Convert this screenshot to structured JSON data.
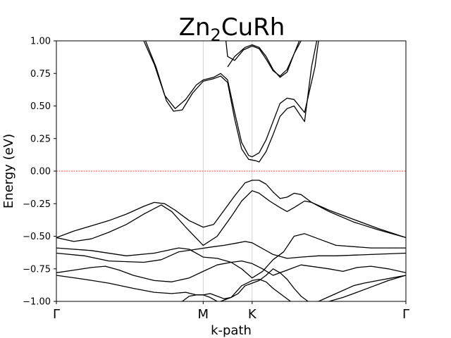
{
  "chart_data": {
    "type": "line",
    "title_main": "Zn",
    "title_sub": "2",
    "title_rest": "CuRh",
    "xlabel": "k-path",
    "ylabel": "Energy (eV)",
    "xlim": [
      0,
      1
    ],
    "ylim": [
      -1.0,
      1.0
    ],
    "yticks": [
      -1.0,
      -0.75,
      -0.5,
      -0.25,
      0.0,
      0.25,
      0.5,
      0.75,
      1.0
    ],
    "ytick_labels": [
      "−1.00",
      "−0.75",
      "−0.50",
      "−0.25",
      "0.00",
      "0.25",
      "0.50",
      "0.75",
      "1.00"
    ],
    "kpoints": [
      {
        "label": "Γ",
        "x": 0.0
      },
      {
        "label": "M",
        "x": 0.42
      },
      {
        "label": "K",
        "x": 0.56
      },
      {
        "label": "Γ",
        "x": 1.0
      }
    ],
    "fermi_level": 0.0,
    "colors": {
      "band": "#000000",
      "fermi": "#ff0000",
      "vline": "#c8c8c8"
    },
    "series": [
      {
        "points": [
          [
            0.25,
            1.0
          ],
          [
            0.28,
            0.82
          ],
          [
            0.31,
            0.58
          ],
          [
            0.34,
            0.48
          ],
          [
            0.37,
            0.55
          ],
          [
            0.4,
            0.66
          ],
          [
            0.42,
            0.7
          ],
          [
            0.45,
            0.72
          ],
          [
            0.47,
            0.75
          ],
          [
            0.49,
            0.7
          ],
          [
            0.51,
            0.45
          ],
          [
            0.53,
            0.22
          ],
          [
            0.55,
            0.12
          ],
          [
            0.56,
            0.11
          ],
          [
            0.58,
            0.14
          ],
          [
            0.6,
            0.24
          ],
          [
            0.62,
            0.38
          ],
          [
            0.64,
            0.52
          ],
          [
            0.66,
            0.56
          ],
          [
            0.68,
            0.55
          ],
          [
            0.71,
            0.45
          ],
          [
            0.74,
            0.8
          ],
          [
            0.75,
            1.0
          ]
        ]
      },
      {
        "points": [
          [
            0.255,
            1.0
          ],
          [
            0.285,
            0.8
          ],
          [
            0.315,
            0.54
          ],
          [
            0.335,
            0.46
          ],
          [
            0.36,
            0.47
          ],
          [
            0.39,
            0.6
          ],
          [
            0.42,
            0.69
          ],
          [
            0.45,
            0.71
          ],
          [
            0.47,
            0.73
          ],
          [
            0.49,
            0.68
          ],
          [
            0.51,
            0.4
          ],
          [
            0.53,
            0.17
          ],
          [
            0.55,
            0.09
          ],
          [
            0.57,
            0.08
          ],
          [
            0.58,
            0.07
          ],
          [
            0.6,
            0.15
          ],
          [
            0.62,
            0.28
          ],
          [
            0.64,
            0.42
          ],
          [
            0.66,
            0.48
          ],
          [
            0.68,
            0.5
          ],
          [
            0.71,
            0.38
          ],
          [
            0.73,
            0.8
          ],
          [
            0.745,
            1.0
          ]
        ]
      },
      {
        "points": [
          [
            0.485,
            1.0
          ],
          [
            0.49,
            0.88
          ],
          [
            0.51,
            0.85
          ],
          [
            0.535,
            0.93
          ],
          [
            0.56,
            0.96
          ],
          [
            0.58,
            0.94
          ],
          [
            0.6,
            0.86
          ],
          [
            0.62,
            0.77
          ],
          [
            0.64,
            0.73
          ],
          [
            0.66,
            0.78
          ],
          [
            0.68,
            0.9
          ],
          [
            0.695,
            1.0
          ]
        ]
      },
      {
        "points": [
          [
            0.49,
            0.8
          ],
          [
            0.51,
            0.88
          ],
          [
            0.54,
            0.95
          ],
          [
            0.56,
            0.97
          ],
          [
            0.58,
            0.95
          ],
          [
            0.6,
            0.88
          ],
          [
            0.62,
            0.78
          ],
          [
            0.64,
            0.72
          ],
          [
            0.66,
            0.76
          ],
          [
            0.68,
            0.9
          ],
          [
            0.7,
            1.0
          ]
        ]
      },
      {
        "points": [
          [
            0.0,
            -0.51
          ],
          [
            0.05,
            -0.46
          ],
          [
            0.1,
            -0.42
          ],
          [
            0.15,
            -0.38
          ],
          [
            0.2,
            -0.33
          ],
          [
            0.25,
            -0.27
          ],
          [
            0.28,
            -0.24
          ],
          [
            0.31,
            -0.25
          ],
          [
            0.34,
            -0.3
          ],
          [
            0.38,
            -0.38
          ],
          [
            0.42,
            -0.43
          ],
          [
            0.45,
            -0.41
          ],
          [
            0.48,
            -0.3
          ],
          [
            0.51,
            -0.19
          ],
          [
            0.54,
            -0.09
          ],
          [
            0.56,
            -0.07
          ],
          [
            0.58,
            -0.07
          ],
          [
            0.6,
            -0.1
          ],
          [
            0.62,
            -0.16
          ],
          [
            0.64,
            -0.21
          ],
          [
            0.66,
            -0.2
          ],
          [
            0.68,
            -0.17
          ],
          [
            0.7,
            -0.18
          ],
          [
            0.73,
            -0.24
          ],
          [
            0.78,
            -0.3
          ],
          [
            0.85,
            -0.37
          ],
          [
            0.92,
            -0.44
          ],
          [
            1.0,
            -0.51
          ]
        ]
      },
      {
        "points": [
          [
            0.0,
            -0.51
          ],
          [
            0.05,
            -0.54
          ],
          [
            0.1,
            -0.52
          ],
          [
            0.15,
            -0.47
          ],
          [
            0.2,
            -0.41
          ],
          [
            0.25,
            -0.33
          ],
          [
            0.3,
            -0.26
          ],
          [
            0.33,
            -0.31
          ],
          [
            0.37,
            -0.43
          ],
          [
            0.42,
            -0.57
          ],
          [
            0.46,
            -0.5
          ],
          [
            0.5,
            -0.35
          ],
          [
            0.53,
            -0.23
          ],
          [
            0.56,
            -0.15
          ],
          [
            0.58,
            -0.17
          ],
          [
            0.61,
            -0.23
          ],
          [
            0.64,
            -0.28
          ],
          [
            0.66,
            -0.31
          ],
          [
            0.68,
            -0.28
          ],
          [
            0.71,
            -0.23
          ],
          [
            0.73,
            -0.24
          ],
          [
            0.78,
            -0.31
          ],
          [
            0.85,
            -0.39
          ],
          [
            0.92,
            -0.45
          ],
          [
            1.0,
            -0.51
          ]
        ]
      },
      {
        "points": [
          [
            0.0,
            -0.59
          ],
          [
            0.1,
            -0.61
          ],
          [
            0.2,
            -0.65
          ],
          [
            0.28,
            -0.63
          ],
          [
            0.35,
            -0.59
          ],
          [
            0.38,
            -0.6
          ],
          [
            0.42,
            -0.66
          ],
          [
            0.46,
            -0.67
          ],
          [
            0.5,
            -0.7
          ],
          [
            0.53,
            -0.75
          ],
          [
            0.56,
            -0.82
          ],
          [
            0.59,
            -0.77
          ],
          [
            0.62,
            -0.68
          ],
          [
            0.65,
            -0.62
          ],
          [
            0.68,
            -0.5
          ],
          [
            0.71,
            -0.48
          ],
          [
            0.75,
            -0.52
          ],
          [
            0.8,
            -0.57
          ],
          [
            0.9,
            -0.59
          ],
          [
            1.0,
            -0.59
          ]
        ]
      },
      {
        "points": [
          [
            0.0,
            -0.63
          ],
          [
            0.08,
            -0.65
          ],
          [
            0.15,
            -0.69
          ],
          [
            0.25,
            -0.7
          ],
          [
            0.3,
            -0.68
          ],
          [
            0.35,
            -0.62
          ],
          [
            0.4,
            -0.6
          ],
          [
            0.45,
            -0.58
          ],
          [
            0.48,
            -0.57
          ],
          [
            0.52,
            -0.55
          ],
          [
            0.54,
            -0.54
          ],
          [
            0.56,
            -0.55
          ],
          [
            0.58,
            -0.58
          ],
          [
            0.62,
            -0.64
          ],
          [
            0.66,
            -0.67
          ],
          [
            0.7,
            -0.66
          ],
          [
            0.75,
            -0.65
          ],
          [
            0.8,
            -0.65
          ],
          [
            0.9,
            -0.64
          ],
          [
            1.0,
            -0.63
          ]
        ]
      },
      {
        "points": [
          [
            0.0,
            -0.78
          ],
          [
            0.05,
            -0.76
          ],
          [
            0.1,
            -0.74
          ],
          [
            0.14,
            -0.73
          ],
          [
            0.18,
            -0.76
          ],
          [
            0.22,
            -0.8
          ],
          [
            0.28,
            -0.84
          ],
          [
            0.33,
            -0.85
          ],
          [
            0.38,
            -0.82
          ],
          [
            0.42,
            -0.77
          ],
          [
            0.46,
            -0.72
          ],
          [
            0.5,
            -0.7
          ],
          [
            0.53,
            -0.69
          ],
          [
            0.56,
            -0.71
          ],
          [
            0.59,
            -0.75
          ],
          [
            0.62,
            -0.8
          ],
          [
            0.66,
            -0.76
          ],
          [
            0.7,
            -0.72
          ],
          [
            0.78,
            -0.75
          ],
          [
            0.82,
            -0.77
          ],
          [
            0.86,
            -0.74
          ],
          [
            0.9,
            -0.73
          ],
          [
            0.95,
            -0.75
          ],
          [
            1.0,
            -0.78
          ]
        ]
      },
      {
        "points": [
          [
            0.0,
            -0.8
          ],
          [
            0.08,
            -0.83
          ],
          [
            0.15,
            -0.86
          ],
          [
            0.22,
            -0.9
          ],
          [
            0.28,
            -0.93
          ],
          [
            0.33,
            -0.94
          ],
          [
            0.37,
            -0.93
          ],
          [
            0.4,
            -0.95
          ],
          [
            0.42,
            -0.95
          ],
          [
            0.44,
            -0.94
          ],
          [
            0.46,
            -0.96
          ],
          [
            0.48,
            -0.98
          ],
          [
            0.5,
            -0.97
          ],
          [
            0.52,
            -0.94
          ],
          [
            0.54,
            -0.88
          ],
          [
            0.56,
            -0.86
          ],
          [
            0.58,
            -0.84
          ],
          [
            0.6,
            -0.8
          ],
          [
            0.62,
            -0.75
          ],
          [
            0.64,
            -0.78
          ],
          [
            0.66,
            -0.83
          ],
          [
            0.68,
            -0.9
          ],
          [
            0.7,
            -0.96
          ],
          [
            0.72,
            -1.0
          ]
        ]
      },
      {
        "points": [
          [
            0.36,
            -1.0
          ],
          [
            0.38,
            -0.96
          ],
          [
            0.4,
            -0.95
          ],
          [
            0.42,
            -0.95
          ],
          [
            0.44,
            -0.97
          ],
          [
            0.46,
            -1.0
          ]
        ]
      },
      {
        "points": [
          [
            0.47,
            -1.0
          ],
          [
            0.5,
            -0.97
          ],
          [
            0.53,
            -0.88
          ],
          [
            0.56,
            -0.84
          ],
          [
            0.58,
            -0.83
          ],
          [
            0.6,
            -0.85
          ],
          [
            0.62,
            -0.9
          ],
          [
            0.65,
            -0.96
          ],
          [
            0.67,
            -1.0
          ]
        ]
      },
      {
        "points": [
          [
            0.75,
            -1.0
          ],
          [
            0.8,
            -0.94
          ],
          [
            0.85,
            -0.88
          ],
          [
            0.88,
            -0.86
          ],
          [
            0.92,
            -0.84
          ],
          [
            0.96,
            -0.82
          ],
          [
            1.0,
            -0.8
          ]
        ]
      },
      {
        "points": [
          [
            0.78,
            -1.0
          ],
          [
            0.82,
            -0.97
          ],
          [
            0.86,
            -0.93
          ],
          [
            0.9,
            -0.89
          ],
          [
            0.95,
            -0.84
          ],
          [
            1.0,
            -0.8
          ]
        ]
      }
    ]
  }
}
